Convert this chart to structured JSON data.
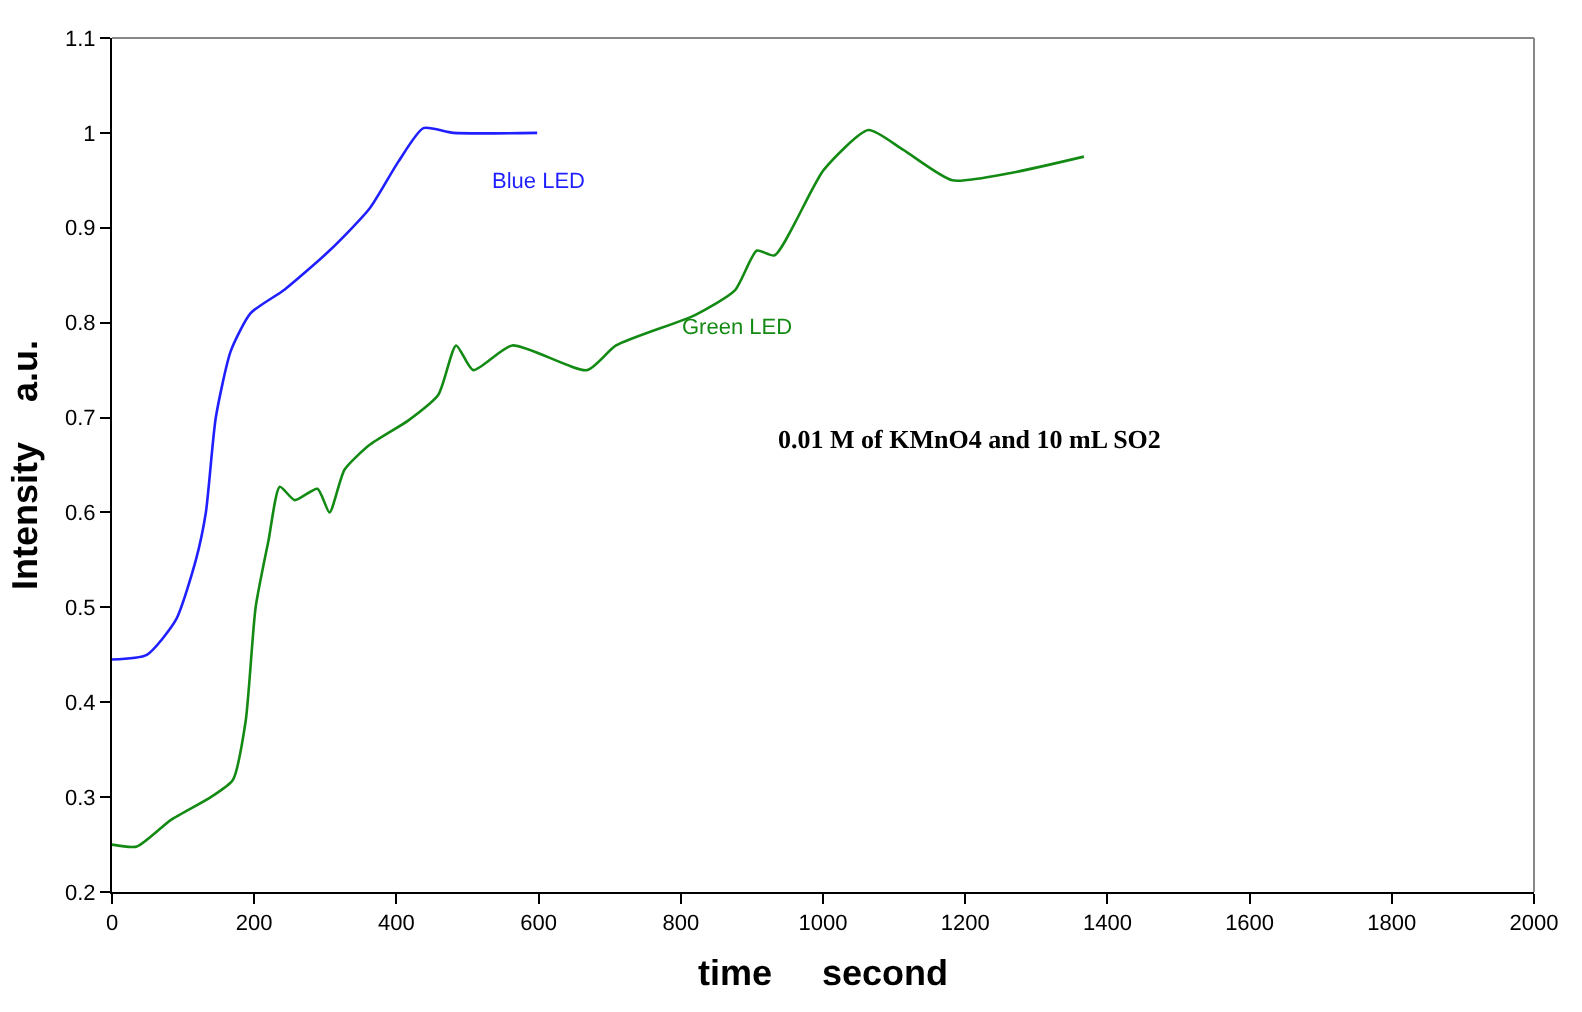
{
  "chart_data": {
    "type": "line",
    "xlabel": "time     second",
    "ylabel": "Intensity    a.u.",
    "annotations": [
      "0.01 M of KMnO4 and 10 mL SO2"
    ],
    "xlim": [
      0,
      2000
    ],
    "xticks": [
      0,
      200,
      400,
      600,
      800,
      1000,
      1200,
      1400,
      1600,
      1800,
      2000
    ],
    "ylim": [
      0.2,
      1.1
    ],
    "yticks": [
      0.2,
      0.3,
      0.4,
      0.5,
      0.6,
      0.7,
      0.8,
      0.9,
      1,
      1.1
    ],
    "grid": false,
    "legend": false,
    "marker": "none",
    "line_style": "solid",
    "series": [
      {
        "name": "Blue LED",
        "color": "#1f1fff",
        "x": [
          0,
          49,
          90,
          118,
          132,
          146,
          167,
          195,
          243,
          306,
          362,
          403,
          438,
          480,
          598
        ],
        "values": [
          0.445,
          0.45,
          0.487,
          0.55,
          0.6,
          0.7,
          0.77,
          0.81,
          0.835,
          0.876,
          0.92,
          0.97,
          1.005,
          1.0,
          1.0
        ]
      },
      {
        "name": "Green LED",
        "color": "#138a13",
        "x": [
          0,
          35,
          83,
          139,
          170,
          188,
          202,
          220,
          236,
          257,
          289,
          306,
          327,
          362,
          417,
          459,
          484,
          508,
          563,
          668,
          709,
          820,
          876,
          907,
          932,
          1001,
          1064,
          1113,
          1182,
          1266,
          1367
        ],
        "values": [
          0.25,
          0.248,
          0.276,
          0.3,
          0.318,
          0.38,
          0.5,
          0.57,
          0.627,
          0.613,
          0.625,
          0.6,
          0.645,
          0.671,
          0.697,
          0.724,
          0.776,
          0.75,
          0.776,
          0.75,
          0.776,
          0.808,
          0.834,
          0.876,
          0.871,
          0.961,
          1.003,
          0.982,
          0.95,
          0.958,
          0.975
        ]
      }
    ]
  }
}
